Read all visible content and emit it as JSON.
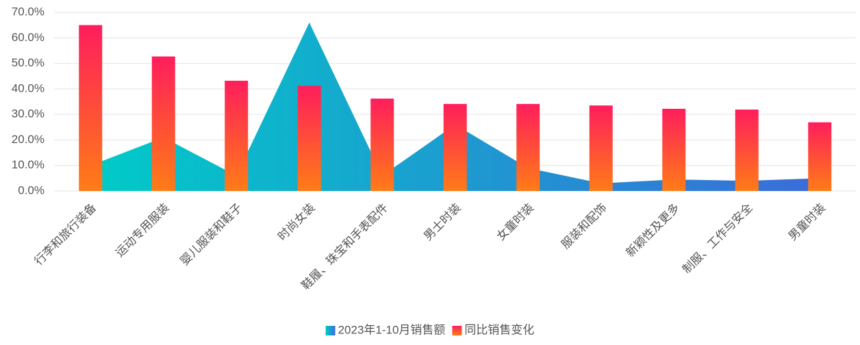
{
  "chart_data": {
    "type": "bar",
    "categories": [
      "行李和旅行装备",
      "运动专用服装",
      "婴儿服装和鞋子",
      "时尚女装",
      "鞋履、珠宝和手表配件",
      "男士时装",
      "女童时装",
      "服装和配饰",
      "新颖性及更多",
      "制服、工作与安全",
      "男童时装"
    ],
    "series": [
      {
        "name": "2023年1-10月销售额",
        "type": "area",
        "color": [
          "#00cbc8",
          "#3a6cd8"
        ],
        "values": [
          10,
          21,
          6,
          66,
          6,
          26,
          9,
          3,
          4.5,
          4,
          5
        ]
      },
      {
        "name": "同比销售变化",
        "type": "bar",
        "color": [
          "#ff1e5c",
          "#ff7c16"
        ],
        "values": [
          65,
          52.7,
          43.2,
          41.2,
          36.2,
          34.1,
          34.1,
          33.5,
          32.2,
          31.9,
          26.9
        ]
      }
    ],
    "ylim": [
      0,
      70
    ],
    "yticks": [
      {
        "value": 0,
        "label": "0.0%"
      },
      {
        "value": 10,
        "label": "10.0%"
      },
      {
        "value": 20,
        "label": "20.0%"
      },
      {
        "value": 30,
        "label": "30.0%"
      },
      {
        "value": 40,
        "label": "40.0%"
      },
      {
        "value": 50,
        "label": "50.0%"
      },
      {
        "value": 60,
        "label": "60.0%"
      },
      {
        "value": 70,
        "label": "70.0%"
      }
    ],
    "grid": true,
    "legend": "bottom"
  }
}
